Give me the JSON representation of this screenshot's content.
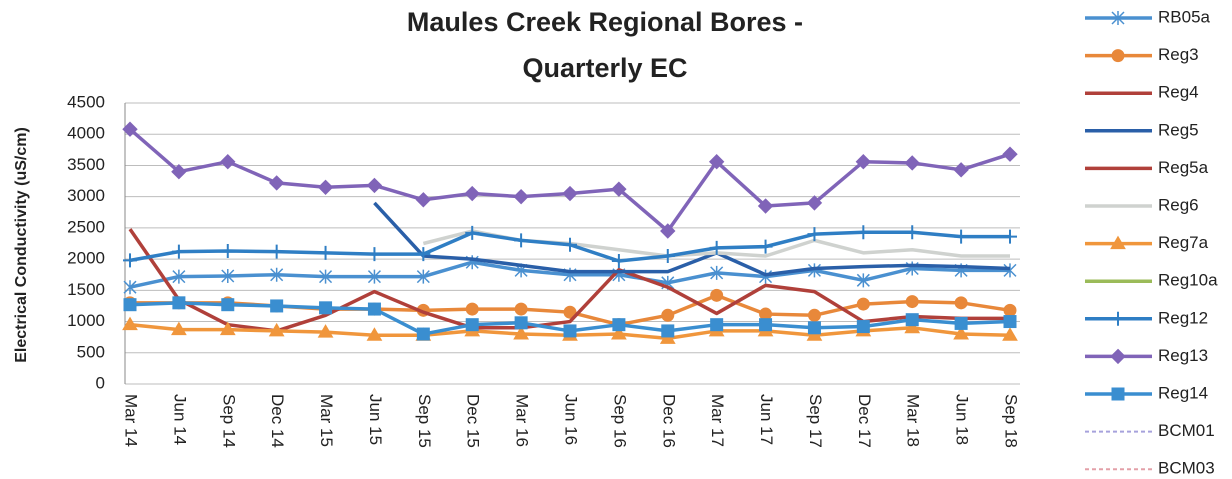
{
  "chart_data": {
    "type": "line",
    "title": [
      "Maules Creek Regional Bores -",
      "Quarterly EC"
    ],
    "y_label": "Electrical Conductivity (uS/cm)",
    "categories": [
      "Mar 14",
      "Jun 14",
      "Sep 14",
      "Dec 14",
      "Mar 15",
      "Jun 15",
      "Sep 15",
      "Dec 15",
      "Mar 16",
      "Jun 16",
      "Sep 16",
      "Dec 16",
      "Mar 17",
      "Jun 17",
      "Sep 17",
      "Dec 17",
      "Mar 18",
      "Jun 18",
      "Sep 18"
    ],
    "ylim": [
      0,
      4500
    ],
    "yticks": [
      0,
      500,
      1000,
      1500,
      2000,
      2500,
      3000,
      3500,
      4000,
      4500
    ],
    "grid": true,
    "legend": "right",
    "series": [
      {
        "name": "RB05a",
        "color": "#4a90d0",
        "marker": "asterisk",
        "values": [
          1550,
          1720,
          1730,
          1750,
          1720,
          1720,
          1720,
          1950,
          1820,
          1750,
          1750,
          1620,
          1780,
          1720,
          1820,
          1660,
          1850,
          1820,
          1820
        ]
      },
      {
        "name": "Reg3",
        "color": "#e8883a",
        "marker": "circle",
        "values": [
          1300,
          1300,
          1300,
          1250,
          1200,
          1200,
          1180,
          1200,
          1200,
          1150,
          950,
          1100,
          1420,
          1120,
          1100,
          1280,
          1320,
          1300,
          1180
        ]
      },
      {
        "name": "Reg4",
        "color": "#b0403a",
        "marker": "none",
        "values": [
          2480,
          1350,
          950,
          850,
          1100,
          1480,
          1150,
          900,
          900,
          1000,
          1830,
          1550,
          1130,
          1580,
          1480,
          1000,
          1080,
          1050,
          1050
        ]
      },
      {
        "name": "Reg5",
        "color": "#2a5fa8",
        "marker": "none",
        "values": [
          null,
          null,
          null,
          null,
          null,
          2900,
          2050,
          2000,
          1900,
          1800,
          1800,
          1800,
          2100,
          1750,
          1850,
          1880,
          1900,
          1880,
          1850
        ]
      },
      {
        "name": "Reg5a",
        "color": "#b0403a",
        "marker": "none",
        "values": [
          null,
          null,
          null,
          null,
          null,
          null,
          null,
          null,
          null,
          null,
          null,
          null,
          null,
          null,
          null,
          null,
          null,
          null,
          null
        ]
      },
      {
        "name": "Reg6",
        "color": "#cfd2cf",
        "marker": "none",
        "values": [
          null,
          null,
          null,
          null,
          null,
          null,
          2250,
          2450,
          2300,
          2250,
          2150,
          2050,
          2100,
          2050,
          2300,
          2100,
          2150,
          2050,
          2050
        ]
      },
      {
        "name": "Reg7a",
        "color": "#f0963c",
        "marker": "triangle",
        "values": [
          950,
          870,
          870,
          850,
          830,
          780,
          780,
          850,
          800,
          780,
          800,
          730,
          850,
          850,
          780,
          850,
          900,
          800,
          780
        ]
      },
      {
        "name": "Reg10a",
        "color": "#9bbb59",
        "marker": "none",
        "values": [
          null,
          null,
          null,
          null,
          null,
          null,
          null,
          null,
          null,
          null,
          null,
          null,
          null,
          null,
          null,
          null,
          null,
          null,
          null
        ]
      },
      {
        "name": "Reg12",
        "color": "#2f7ec4",
        "marker": "plus",
        "values": [
          1980,
          2120,
          2130,
          2120,
          2100,
          2080,
          2080,
          2420,
          2300,
          2230,
          1970,
          2050,
          2180,
          2200,
          2400,
          2430,
          2430,
          2360,
          2360
        ]
      },
      {
        "name": "Reg13",
        "color": "#8064b8",
        "marker": "diamond",
        "values": [
          4080,
          3400,
          3560,
          3220,
          3150,
          3180,
          2950,
          3050,
          3000,
          3050,
          3120,
          2450,
          3560,
          2850,
          2900,
          3560,
          3540,
          3430,
          3680
        ]
      },
      {
        "name": "Reg14",
        "color": "#3a8ed0",
        "marker": "square",
        "values": [
          1270,
          1300,
          1270,
          1250,
          1220,
          1200,
          800,
          950,
          980,
          850,
          950,
          850,
          950,
          950,
          900,
          920,
          1030,
          970,
          1000
        ]
      },
      {
        "name": "BCM01",
        "color": "#a6a2dc",
        "marker": "dashed",
        "values": [
          null,
          null,
          null,
          null,
          null,
          null,
          null,
          null,
          null,
          null,
          null,
          null,
          null,
          null,
          null,
          null,
          null,
          null,
          null
        ]
      },
      {
        "name": "BCM03",
        "color": "#e3a0a8",
        "marker": "dashed",
        "values": [
          null,
          null,
          null,
          null,
          null,
          null,
          null,
          null,
          null,
          null,
          null,
          null,
          null,
          null,
          null,
          null,
          null,
          null,
          null
        ]
      }
    ]
  }
}
